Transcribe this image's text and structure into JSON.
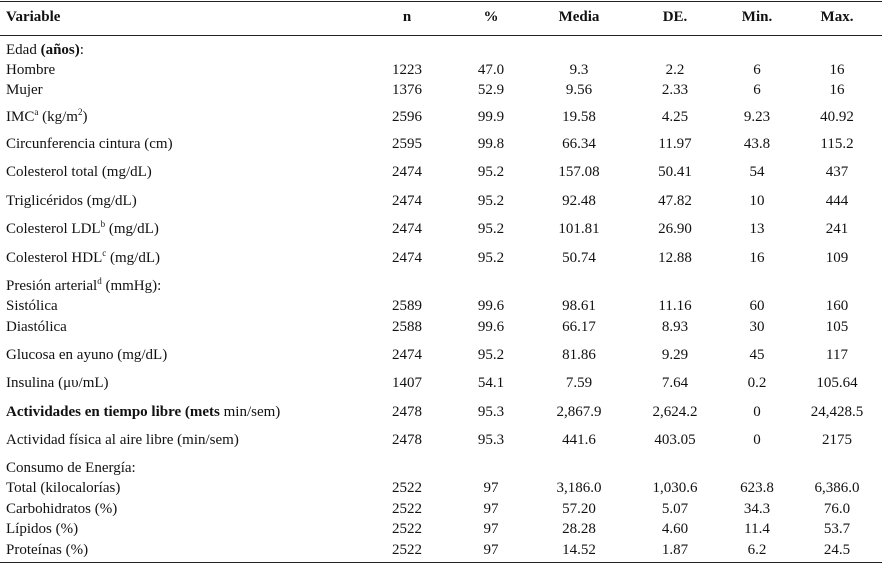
{
  "headers": [
    "Variable",
    "n",
    "%",
    "Media",
    "DE.",
    "Min.",
    "Max."
  ],
  "rows": [
    {
      "label": "Edad",
      "bold": "(años)",
      "after": ":",
      "values": [
        "",
        "",
        "",
        "",
        "",
        ""
      ]
    },
    {
      "label": "Hombre",
      "values": [
        "1223",
        "47.0",
        "9.3",
        "2.2",
        "6",
        "16"
      ]
    },
    {
      "label": "Mujer",
      "values": [
        "1376",
        "52.9",
        "9.56",
        "2.33",
        "6",
        "16"
      ]
    },
    {
      "label": "IMC",
      "sup": "a",
      "after": " (kg/m",
      "sup2": "2",
      "after2": ")",
      "values": [
        "2596",
        "99.9",
        "19.58",
        "4.25",
        "9.23",
        "40.92"
      ]
    },
    {
      "label": "Circunferencia cintura (cm)",
      "values": [
        "2595",
        "99.8",
        "66.34",
        "11.97",
        "43.8",
        "115.2"
      ]
    },
    {
      "label": "Colesterol total (mg/dL)",
      "values": [
        "2474",
        "95.2",
        "157.08",
        "50.41",
        "54",
        "437"
      ]
    },
    {
      "label": "Triglicéridos (mg/dL)",
      "values": [
        "2474",
        "95.2",
        "92.48",
        "47.82",
        "10",
        "444"
      ]
    },
    {
      "label": "Colesterol LDL",
      "sup": "b",
      "after": " (mg/dL)",
      "values": [
        "2474",
        "95.2",
        "101.81",
        "26.90",
        "13",
        "241"
      ]
    },
    {
      "label": "Colesterol HDL",
      "sup": "c",
      "after": " (mg/dL)",
      "values": [
        "2474",
        "95.2",
        "50.74",
        "12.88",
        "16",
        "109"
      ]
    },
    {
      "label": "Presión arterial",
      "sup": "d",
      "after": " (mmHg):",
      "values": [
        "",
        "",
        "",
        "",
        "",
        ""
      ]
    },
    {
      "label": "Sistólica",
      "values": [
        "2589",
        "99.6",
        "98.61",
        "11.16",
        "60",
        "160"
      ]
    },
    {
      "label": "Diastólica",
      "values": [
        "2588",
        "99.6",
        "66.17",
        "8.93",
        "30",
        "105"
      ]
    },
    {
      "label": "Glucosa en ayuno (mg/dL)",
      "values": [
        "2474",
        "95.2",
        "81.86",
        "9.29",
        "45",
        "117"
      ]
    },
    {
      "label": "Insulina (μυ/mL)",
      "values": [
        "1407",
        "54.1",
        "7.59",
        "7.64",
        "0.2",
        "105.64"
      ]
    },
    {
      "label": "",
      "bold": "Actividades en tiempo libre (mets",
      "after": " min/sem)",
      "values": [
        "2478",
        "95.3",
        "2,867.9",
        "2,624.2",
        "0",
        "24,428.5"
      ]
    },
    {
      "label": "Actividad física al aire libre (min/sem)",
      "values": [
        "2478",
        "95.3",
        "441.6",
        "403.05",
        "0",
        "2175"
      ]
    },
    {
      "label": "Consumo de Energía:",
      "values": [
        "",
        "",
        "",
        "",
        "",
        ""
      ]
    },
    {
      "label": "Total (kilocalorías)",
      "values": [
        "2522",
        "97",
        "3,186.0",
        "1,030.6",
        "623.8",
        "6,386.0"
      ]
    },
    {
      "label": "Carbohidratos (%)",
      "values": [
        "2522",
        "97",
        "57.20",
        "5.07",
        "34.3",
        "76.0"
      ]
    },
    {
      "label": "Lípidos (%)",
      "values": [
        "2522",
        "97",
        "28.28",
        "4.60",
        "11.4",
        "53.7"
      ]
    },
    {
      "label": "Proteínas (%)",
      "values": [
        "2522",
        "97",
        "14.52",
        "1.87",
        "6.2",
        "24.5"
      ]
    }
  ]
}
